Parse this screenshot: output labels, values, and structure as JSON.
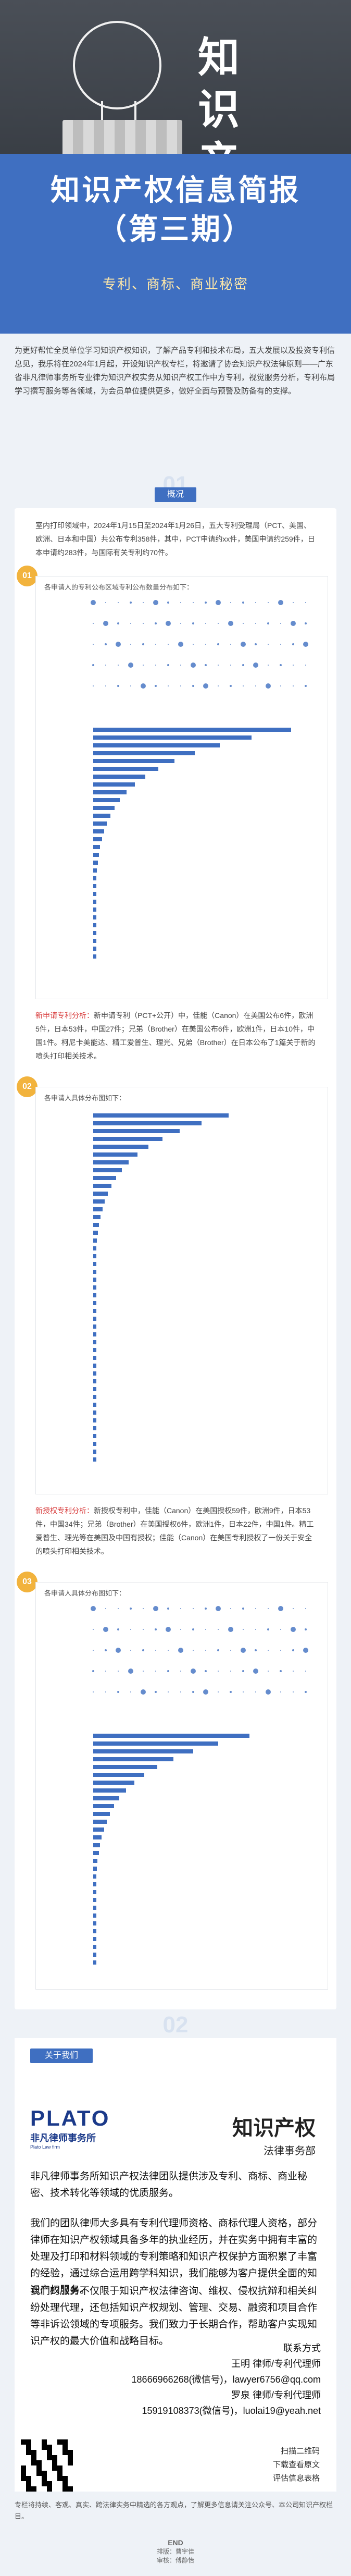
{
  "hero": {
    "title_img": "知识产权",
    "title_line1": "知识产权信息简报",
    "title_line2": "（第三期）",
    "tags": "专利、商标、商业秘密"
  },
  "intro": "为更好帮忙全员单位学习知识产权知识，了解产品专利和技术布局，五大发展以及投资专利信息见，我乐将在2024年1月起，开设知识产权专栏，将邀请了协会知识产权法律原则——广东省非凡律师事务所专业律为知识产权实务从知识产权工作中方专利，视觉服务分析，专利布局学习撰写服务等各领域，为会员单位提供更多，做好全面与预警及防备有的支撑。",
  "section1": {
    "num": "01",
    "tag": "概况",
    "summary": "室内打印领域中，2024年1月15日至2024年1月26日，五大专利受理局（PCT、美国、欧洲、日本和中国）共公布专利358件，其中，PCT申请约xx件，美国申请约259件，日本申请约283件，与国际有关专利约70件。"
  },
  "chart1": {
    "badge": "01",
    "title": "各申请人的专利公布区域专利公布数量分布如下："
  },
  "analysis1": {
    "label": "新申请专利分析：",
    "text": "新申请专利（PCT+公开）中，佳能（Canon）在美国公布6件，欧洲5件，日本53件，中国27件；兄弟（Brother）在美国公布6件，欧洲1件，日本10件，中国1件。柯尼卡美能达、精工爱普生、理光、兄弟（Brother）在日本公布了1篇关于新的喷头打印相关技术。"
  },
  "chart2": {
    "badge": "02",
    "title": "各申请人具体分布图如下："
  },
  "analysis2": {
    "label": "新授权专利分析：",
    "text": "新授权专利中，佳能（Canon）在美国授权59件，欧洲9件，日本53件，中国34件；兄弟（Brother）在美国授权6件，欧洲1件，日本22件，中国1件。精工爱普生、理光等在美国及中国有授权；佳能（Canon）在美国专利授权了一份关于安全的喷头打印相关技术。"
  },
  "chart3": {
    "badge": "03",
    "title": "各申请人具体分布图如下："
  },
  "section2": {
    "num": "02",
    "tag": "关于我们"
  },
  "contact": {
    "logo": "PLATO",
    "logo_cn": "非凡律师事务所",
    "logo_en": "Plato Law firm",
    "title": "知识产权",
    "subtitle": "法律事务部",
    "para1": "非凡律师事务所知识产权法律团队提供涉及专利、商标、商业秘密、技术转化等领域的优质服务。",
    "para2": "我们的团队律师大多具有专利代理师资格、商标代理人资格，部分律师在知识产权领域具备多年的执业经历，并在实务中拥有丰富的处理及打印和材料领域的专利策略和知识产权保护方面积累了丰富的经验，通过综合运用跨学科知识，我们能够为客户提供全面的知识产权服务。",
    "para3": "我们的服务不仅限于知识产权法律咨询、维权、侵权抗辩和相关纠纷处理代理，还包括知识产权规划、管理、交易、融资和项目合作等非诉讼领域的专项服务。我们致力于长期合作，帮助客户实现知识产权的最大价值和战略目标。",
    "contact_label": "联系方式",
    "person1": "王明  律师/专利代理师",
    "phone1": "18666966268(微信号)，lawyer6756@qq.com",
    "person2": "罗泉  律师/专利代理师",
    "phone2": "15919108373(微信号)，luolai19@yeah.net",
    "qr_note1": "扫描二维码",
    "qr_note2": "下载查看原文",
    "qr_note3": "评估信息表格"
  },
  "footer": {
    "note": "专栏将持续、客观、真实、跨法律实务中精选的各方观点，了解更多信息请关注公众号、本公司知识产权栏目。",
    "end": "END",
    "editor": "排版：曹宇佳",
    "reviewer": "审核：傅静怡"
  }
}
